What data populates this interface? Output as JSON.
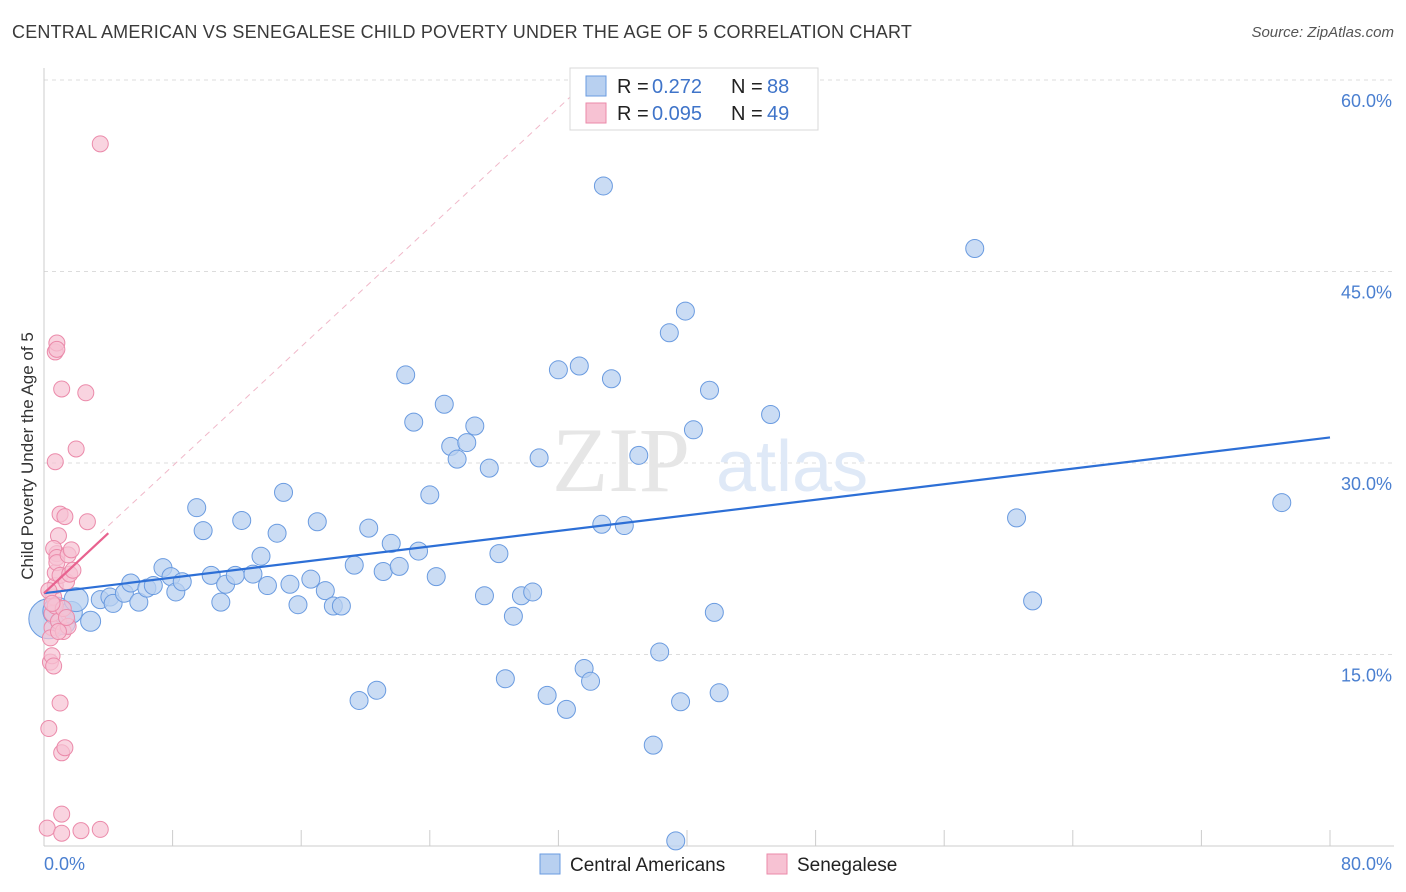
{
  "title": "CENTRAL AMERICAN VS SENEGALESE CHILD POVERTY UNDER THE AGE OF 5 CORRELATION CHART",
  "source": "Source: ZipAtlas.com",
  "colors": {
    "blue_fill": "#b8d0f0",
    "blue_stroke": "#6a9be0",
    "blue_line": "#2d6fd6",
    "pink_fill": "#f7c2d3",
    "pink_stroke": "#eb8aaa",
    "pink_line": "#e8628f",
    "grid": "#dcdcdc",
    "tick_text": "#4a7fd0"
  },
  "legend": {
    "r_label": "R =",
    "n_label": "N =",
    "rows": [
      {
        "r": "0.272",
        "n": "88"
      },
      {
        "r": "0.095",
        "n": "49"
      }
    ]
  },
  "watermark": {
    "zip": "ZIP",
    "atlas": "atlas"
  },
  "chart_data": {
    "type": "scatter",
    "title": "CENTRAL AMERICAN VS SENEGALESE CHILD POVERTY UNDER THE AGE OF 5 CORRELATION CHART",
    "xlabel": "",
    "ylabel": "Child Poverty Under the Age of 5",
    "xlim": [
      0,
      80
    ],
    "ylim": [
      0,
      60
    ],
    "x_tick_labels": [
      "0.0%",
      "80.0%"
    ],
    "y_ticks": [
      15,
      30,
      45,
      60
    ],
    "y_tick_labels": [
      "15.0%",
      "30.0%",
      "45.0%",
      "60.0%"
    ],
    "grid": true,
    "legend_placement": "top-center",
    "series": [
      {
        "name": "Central Americans",
        "color": "#b8d0f0",
        "r": 0.272,
        "n": 88,
        "trend": {
          "x": [
            0,
            80
          ],
          "y": [
            19.8,
            32.0
          ]
        },
        "points": [
          [
            0.3,
            17.8,
            20
          ],
          [
            0.8,
            18.4,
            14
          ],
          [
            1.2,
            17.5,
            12
          ],
          [
            1.7,
            18.3,
            11
          ],
          [
            2.0,
            19.3,
            12
          ],
          [
            2.9,
            17.6,
            10
          ],
          [
            3.5,
            19.3,
            9
          ],
          [
            4.1,
            19.5,
            9
          ],
          [
            4.3,
            19.0,
            9
          ],
          [
            5.0,
            19.8,
            9
          ],
          [
            5.4,
            20.6,
            9
          ],
          [
            5.9,
            19.1,
            9
          ],
          [
            6.4,
            20.2,
            9
          ],
          [
            6.8,
            20.4,
            9
          ],
          [
            7.4,
            21.8,
            9
          ],
          [
            7.9,
            21.1,
            9
          ],
          [
            8.2,
            19.9,
            9
          ],
          [
            8.6,
            20.7,
            9
          ],
          [
            9.5,
            26.5,
            9
          ],
          [
            9.9,
            24.7,
            9
          ],
          [
            10.4,
            21.2,
            9
          ],
          [
            11.0,
            19.1,
            9
          ],
          [
            11.3,
            20.5,
            9
          ],
          [
            11.9,
            21.2,
            9
          ],
          [
            12.3,
            25.5,
            9
          ],
          [
            13.0,
            21.3,
            9
          ],
          [
            13.5,
            22.7,
            9
          ],
          [
            13.9,
            20.4,
            9
          ],
          [
            14.5,
            24.5,
            9
          ],
          [
            14.9,
            27.7,
            9
          ],
          [
            15.3,
            20.5,
            9
          ],
          [
            15.8,
            18.9,
            9
          ],
          [
            16.6,
            20.9,
            9
          ],
          [
            17.0,
            25.4,
            9
          ],
          [
            17.5,
            20.0,
            9
          ],
          [
            18.0,
            18.8,
            9
          ],
          [
            18.5,
            18.8,
            9
          ],
          [
            19.3,
            22.0,
            9
          ],
          [
            19.6,
            11.4,
            9
          ],
          [
            20.2,
            24.9,
            9
          ],
          [
            20.7,
            12.2,
            9
          ],
          [
            21.1,
            21.5,
            9
          ],
          [
            21.6,
            23.7,
            9
          ],
          [
            22.1,
            21.9,
            9
          ],
          [
            22.5,
            36.9,
            9
          ],
          [
            23.0,
            33.2,
            9
          ],
          [
            23.3,
            23.1,
            9
          ],
          [
            24.0,
            27.5,
            9
          ],
          [
            24.4,
            21.1,
            9
          ],
          [
            24.9,
            34.6,
            9
          ],
          [
            25.3,
            31.3,
            9
          ],
          [
            25.7,
            30.3,
            9
          ],
          [
            26.3,
            31.6,
            9
          ],
          [
            26.8,
            32.9,
            9
          ],
          [
            27.4,
            19.6,
            9
          ],
          [
            27.7,
            29.6,
            9
          ],
          [
            28.3,
            22.9,
            9
          ],
          [
            28.7,
            13.1,
            9
          ],
          [
            29.2,
            18.0,
            9
          ],
          [
            29.7,
            19.6,
            9
          ],
          [
            30.4,
            19.9,
            9
          ],
          [
            30.8,
            30.4,
            9
          ],
          [
            31.3,
            11.8,
            9
          ],
          [
            32.0,
            37.3,
            9
          ],
          [
            32.5,
            10.7,
            9
          ],
          [
            33.3,
            37.6,
            9
          ],
          [
            33.6,
            13.9,
            9
          ],
          [
            34.0,
            12.9,
            9
          ],
          [
            34.7,
            25.2,
            9
          ],
          [
            34.8,
            51.7,
            9
          ],
          [
            35.3,
            36.6,
            9
          ],
          [
            36.1,
            25.1,
            9
          ],
          [
            37.0,
            30.6,
            9
          ],
          [
            37.9,
            7.9,
            9
          ],
          [
            38.3,
            15.2,
            9
          ],
          [
            38.9,
            40.2,
            9
          ],
          [
            39.6,
            11.3,
            9
          ],
          [
            39.3,
            0.4,
            9
          ],
          [
            39.9,
            41.9,
            9
          ],
          [
            40.4,
            32.6,
            9
          ],
          [
            41.4,
            35.7,
            9
          ],
          [
            41.7,
            18.3,
            9
          ],
          [
            42.0,
            12.0,
            9
          ],
          [
            45.2,
            33.8,
            9
          ],
          [
            57.9,
            46.8,
            9
          ],
          [
            60.5,
            25.7,
            9
          ],
          [
            61.5,
            19.2,
            9
          ],
          [
            77.0,
            26.9,
            9
          ]
        ]
      },
      {
        "name": "Senegalese",
        "color": "#f7c2d3",
        "r": 0.095,
        "n": 49,
        "trend": {
          "x": [
            0,
            4
          ],
          "y": [
            19.8,
            24.5
          ]
        },
        "points": [
          [
            0.2,
            1.4
          ],
          [
            0.3,
            9.2
          ],
          [
            0.4,
            14.4
          ],
          [
            0.5,
            17.1
          ],
          [
            0.5,
            18.2
          ],
          [
            0.6,
            19.5
          ],
          [
            0.7,
            20.4
          ],
          [
            0.7,
            21.4
          ],
          [
            0.8,
            22.9
          ],
          [
            0.9,
            24.3
          ],
          [
            1.0,
            26.0
          ],
          [
            0.3,
            20.0
          ],
          [
            0.4,
            16.3
          ],
          [
            0.5,
            14.9
          ],
          [
            0.6,
            23.3
          ],
          [
            0.7,
            18.8
          ],
          [
            0.8,
            22.6
          ],
          [
            0.8,
            22.2
          ],
          [
            0.9,
            17.6
          ],
          [
            1.0,
            21.2
          ],
          [
            1.0,
            11.2
          ],
          [
            1.1,
            7.3
          ],
          [
            1.1,
            2.5
          ],
          [
            1.1,
            1.0
          ],
          [
            1.2,
            18.6
          ],
          [
            1.2,
            16.8
          ],
          [
            1.3,
            25.8
          ],
          [
            1.3,
            7.7
          ],
          [
            1.4,
            20.7
          ],
          [
            1.5,
            22.8
          ],
          [
            1.5,
            17.2
          ],
          [
            1.6,
            21.3
          ],
          [
            1.7,
            23.2
          ],
          [
            1.8,
            21.6
          ],
          [
            0.7,
            38.7
          ],
          [
            0.8,
            39.4
          ],
          [
            0.8,
            38.9
          ],
          [
            1.1,
            35.8
          ],
          [
            2.0,
            31.1
          ],
          [
            2.3,
            1.2
          ],
          [
            2.6,
            35.5
          ],
          [
            2.7,
            25.4
          ],
          [
            3.5,
            1.3
          ],
          [
            3.5,
            55.0
          ],
          [
            0.7,
            30.1
          ],
          [
            0.5,
            19.0
          ],
          [
            0.6,
            14.1
          ],
          [
            0.9,
            16.8
          ],
          [
            1.4,
            17.9
          ]
        ]
      }
    ]
  }
}
